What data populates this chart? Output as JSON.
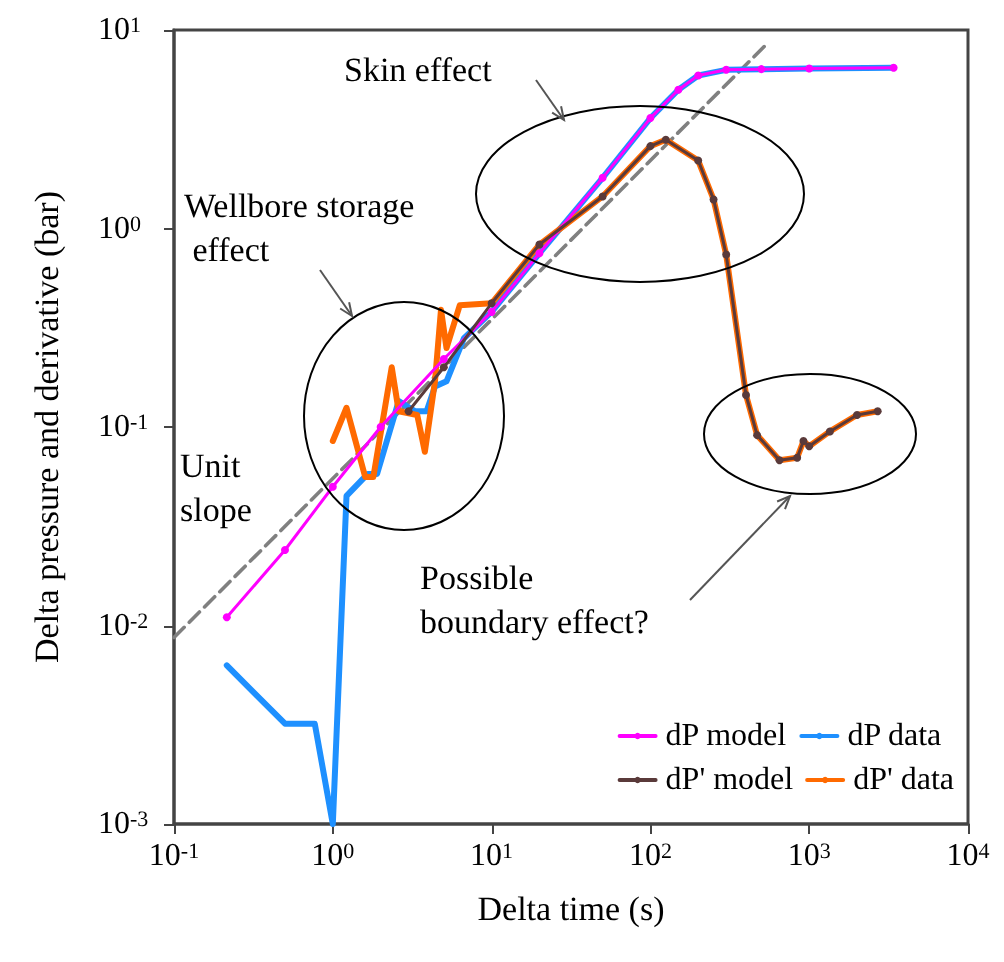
{
  "chart_data": {
    "type": "line",
    "xlabel": "Delta time (s)",
    "ylabel": "Delta pressure and derivative (bar)",
    "log": "xy",
    "xlim": [
      0.1,
      10000
    ],
    "ylim": [
      0.001,
      10
    ],
    "xticks": [
      {
        "value": 0.1,
        "label": "10$^{-1}$"
      },
      {
        "value": 1,
        "label": "10$^{0}$"
      },
      {
        "value": 10,
        "label": "10$^{1}$"
      },
      {
        "value": 100,
        "label": "10$^{2}$"
      },
      {
        "value": 1000,
        "label": "10$^{3}$"
      },
      {
        "value": 10000,
        "label": "10$^{4}$"
      }
    ],
    "yticks": [
      {
        "value": 0.001,
        "label": "10$^{-3}$"
      },
      {
        "value": 0.01,
        "label": "10$^{-2}$"
      },
      {
        "value": 0.1,
        "label": "10$^{-1}$"
      },
      {
        "value": 1,
        "label": "10$^{0}$"
      },
      {
        "value": 10,
        "label": "10$^{1}$"
      }
    ],
    "grid": false,
    "legend": "bottom right",
    "annotations": [
      "Skin effect",
      "Wellbore storage effect",
      "Unit slope",
      "Possible boundary effect?"
    ],
    "series": [
      {
        "name": "dP model",
        "color": "#ff00ff",
        "marker": "circle",
        "x": [
          0.215,
          0.5,
          1,
          2,
          5,
          10,
          20,
          50,
          100,
          150,
          200,
          300,
          500,
          1000,
          3400
        ],
        "values": [
          0.011,
          0.024,
          0.05,
          0.1,
          0.22,
          0.38,
          0.75,
          1.8,
          3.6,
          5.0,
          5.9,
          6.3,
          6.35,
          6.4,
          6.45
        ]
      },
      {
        "name": "dP data",
        "color": "#1e90ff",
        "marker": "none",
        "x": [
          0.215,
          0.5,
          0.77,
          1,
          1.22,
          1.66,
          1.9,
          2.6,
          3.3,
          3.9,
          4.4,
          5.2,
          6.7,
          10,
          20,
          50,
          100,
          150,
          200,
          300,
          500,
          1000,
          3400
        ],
        "values": [
          0.0063,
          0.0032,
          0.0032,
          0.001,
          0.045,
          0.058,
          0.058,
          0.135,
          0.12,
          0.12,
          0.16,
          0.17,
          0.28,
          0.38,
          0.75,
          1.8,
          3.6,
          5.0,
          5.9,
          6.3,
          6.35,
          6.4,
          6.45
        ]
      },
      {
        "name": "dP' model",
        "color": "#5a3a3a",
        "marker": "circle",
        "x": [
          3,
          5,
          10,
          20,
          50,
          100,
          125,
          200,
          250,
          300,
          400,
          470,
          650,
          840,
          920,
          1000,
          1350,
          2000,
          2700
        ],
        "values": [
          0.12,
          0.2,
          0.42,
          0.83,
          1.45,
          2.6,
          2.8,
          2.2,
          1.4,
          0.74,
          0.145,
          0.091,
          0.068,
          0.07,
          0.085,
          0.08,
          0.095,
          0.115,
          0.12
        ]
      },
      {
        "name": "dP' data",
        "color": "#ff6a00",
        "marker": "none",
        "x": [
          1,
          1.22,
          1.6,
          1.8,
          2.35,
          2.6,
          3.4,
          3.8,
          4.4,
          4.8,
          5.2,
          6.3,
          10,
          20,
          50,
          100,
          125,
          200,
          250,
          300,
          400,
          470,
          650,
          840,
          920,
          1000,
          1350,
          2000,
          2700
        ],
        "values": [
          0.085,
          0.125,
          0.056,
          0.056,
          0.2,
          0.12,
          0.115,
          0.075,
          0.17,
          0.39,
          0.25,
          0.41,
          0.42,
          0.83,
          1.45,
          2.6,
          2.8,
          2.2,
          1.4,
          0.74,
          0.145,
          0.091,
          0.068,
          0.07,
          0.085,
          0.08,
          0.095,
          0.115,
          0.12
        ]
      },
      {
        "color": "#808080",
        "marker": "none",
        "line_style": "dashed",
        "x": [
          0.1,
          540
        ],
        "values": [
          0.0087,
          8.5
        ]
      }
    ]
  }
}
